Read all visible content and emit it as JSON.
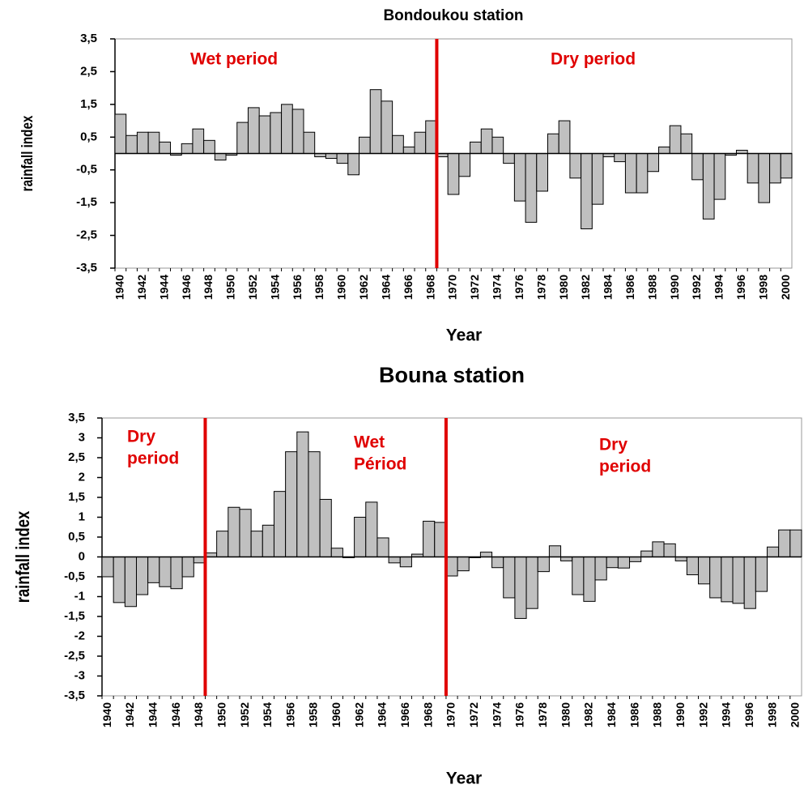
{
  "chart_data": [
    {
      "type": "bar",
      "title": "Bondoukou station",
      "x_label": "Year",
      "y_label": "rainfall index",
      "categories": [
        "1940",
        null,
        "1942",
        null,
        "1944",
        null,
        "1946",
        null,
        "1948",
        null,
        "1950",
        null,
        "1952",
        null,
        "1954",
        null,
        "1956",
        null,
        "1958",
        null,
        "1960",
        null,
        "1962",
        null,
        "1964",
        null,
        "1966",
        null,
        "1968",
        null,
        "1970",
        null,
        "1972",
        null,
        "1974",
        null,
        "1976",
        null,
        "1978",
        null,
        "1980",
        null,
        "1982",
        null,
        "1984",
        null,
        "1986",
        null,
        "1988",
        null,
        "1990",
        null,
        "1992",
        null,
        "1994",
        null,
        "1996",
        null,
        "1998",
        null,
        "2000"
      ],
      "values": [
        1.2,
        0.55,
        0.65,
        0.65,
        0.35,
        -0.05,
        0.3,
        0.75,
        0.4,
        -0.2,
        -0.05,
        0.95,
        1.4,
        1.15,
        1.25,
        1.5,
        1.35,
        0.65,
        -0.1,
        -0.15,
        -0.3,
        -0.65,
        0.5,
        1.95,
        1.6,
        0.55,
        0.2,
        0.65,
        1.0,
        -0.1,
        -1.25,
        -0.7,
        0.35,
        0.75,
        0.5,
        -0.3,
        -1.45,
        -2.1,
        -1.15,
        0.6,
        1.0,
        -0.75,
        -2.3,
        -1.55,
        -0.1,
        -0.25,
        -1.2,
        -1.2,
        -0.55,
        0.2,
        0.85,
        0.6,
        -0.8,
        -2.0,
        -1.4,
        -0.05,
        0.1,
        -0.9,
        -1.5,
        -0.9,
        -0.75
      ],
      "color": "#c0c0c0",
      "break_color": "#e00000",
      "ylim": [
        -3.5,
        3.5
      ],
      "yticks": [
        {
          "value": -3.5,
          "label": "-3,5"
        },
        {
          "value": -2.5,
          "label": "-2,5"
        },
        {
          "value": -1.5,
          "label": "-1,5"
        },
        {
          "value": -0.5,
          "label": "-0,5"
        },
        {
          "value": 0.5,
          "label": "0,5"
        },
        {
          "value": 1.5,
          "label": "1,5"
        },
        {
          "value": 2.5,
          "label": "2,5"
        },
        {
          "value": 3.5,
          "label": "3,5"
        }
      ],
      "period_breaks": [
        1968.5
      ],
      "annotations": [
        [
          "Wet period"
        ],
        [
          "Dry period"
        ]
      ]
    },
    {
      "type": "bar",
      "title": "Bouna station",
      "x_label": "Year",
      "y_label": "rainfall index",
      "categories": [
        "1940",
        null,
        "1942",
        null,
        "1944",
        null,
        "1946",
        null,
        "1948",
        null,
        "1950",
        null,
        "1952",
        null,
        "1954",
        null,
        "1956",
        null,
        "1958",
        null,
        "1960",
        null,
        "1962",
        null,
        "1964",
        null,
        "1966",
        null,
        "1968",
        null,
        "1970",
        null,
        "1972",
        null,
        "1974",
        null,
        "1976",
        null,
        "1978",
        null,
        "1980",
        null,
        "1982",
        null,
        "1984",
        null,
        "1986",
        null,
        "1988",
        null,
        "1990",
        null,
        "1992",
        null,
        "1994",
        null,
        "1996",
        null,
        "1998",
        null,
        "2000"
      ],
      "values": [
        -0.5,
        -1.15,
        -1.25,
        -0.95,
        -0.65,
        -0.75,
        -0.8,
        -0.5,
        -0.15,
        0.1,
        0.65,
        1.25,
        1.2,
        0.65,
        0.8,
        1.65,
        2.65,
        3.15,
        2.65,
        1.45,
        0.22,
        -0.02,
        1.0,
        1.38,
        0.48,
        -0.15,
        -0.25,
        0.07,
        0.9,
        0.87,
        -0.48,
        -0.35,
        -0.02,
        0.12,
        -0.27,
        -1.03,
        -1.55,
        -1.3,
        -0.37,
        0.28,
        -0.1,
        -0.95,
        -1.12,
        -0.58,
        -0.27,
        -0.28,
        -0.12,
        0.15,
        0.38,
        0.33,
        -0.1,
        -0.45,
        -0.68,
        -1.03,
        -1.13,
        -1.17,
        -1.3,
        -0.87,
        0.25,
        0.68,
        0.68
      ],
      "color": "#c0c0c0",
      "break_color": "#e00000",
      "ylim": [
        -3.5,
        3.5
      ],
      "yticks": [
        {
          "value": -3.5,
          "label": "-3,5"
        },
        -3,
        {
          "value": -2.5,
          "label": "-2,5"
        },
        -2,
        {
          "value": -1.5,
          "label": "-1,5"
        },
        -1,
        {
          "value": -0.5,
          "label": "-0,5"
        },
        0,
        {
          "value": 0.5,
          "label": "0,5"
        },
        1,
        {
          "value": 1.5,
          "label": "1,5"
        },
        2,
        {
          "value": 2.5,
          "label": "2,5"
        },
        3,
        {
          "value": 3.5,
          "label": "3,5"
        }
      ],
      "period_breaks": [
        1948.5,
        1969.5
      ],
      "annotations": [
        [
          "Dry",
          "period"
        ],
        [
          "Wet",
          "Périod"
        ],
        [
          "Dry",
          "period"
        ]
      ]
    }
  ]
}
